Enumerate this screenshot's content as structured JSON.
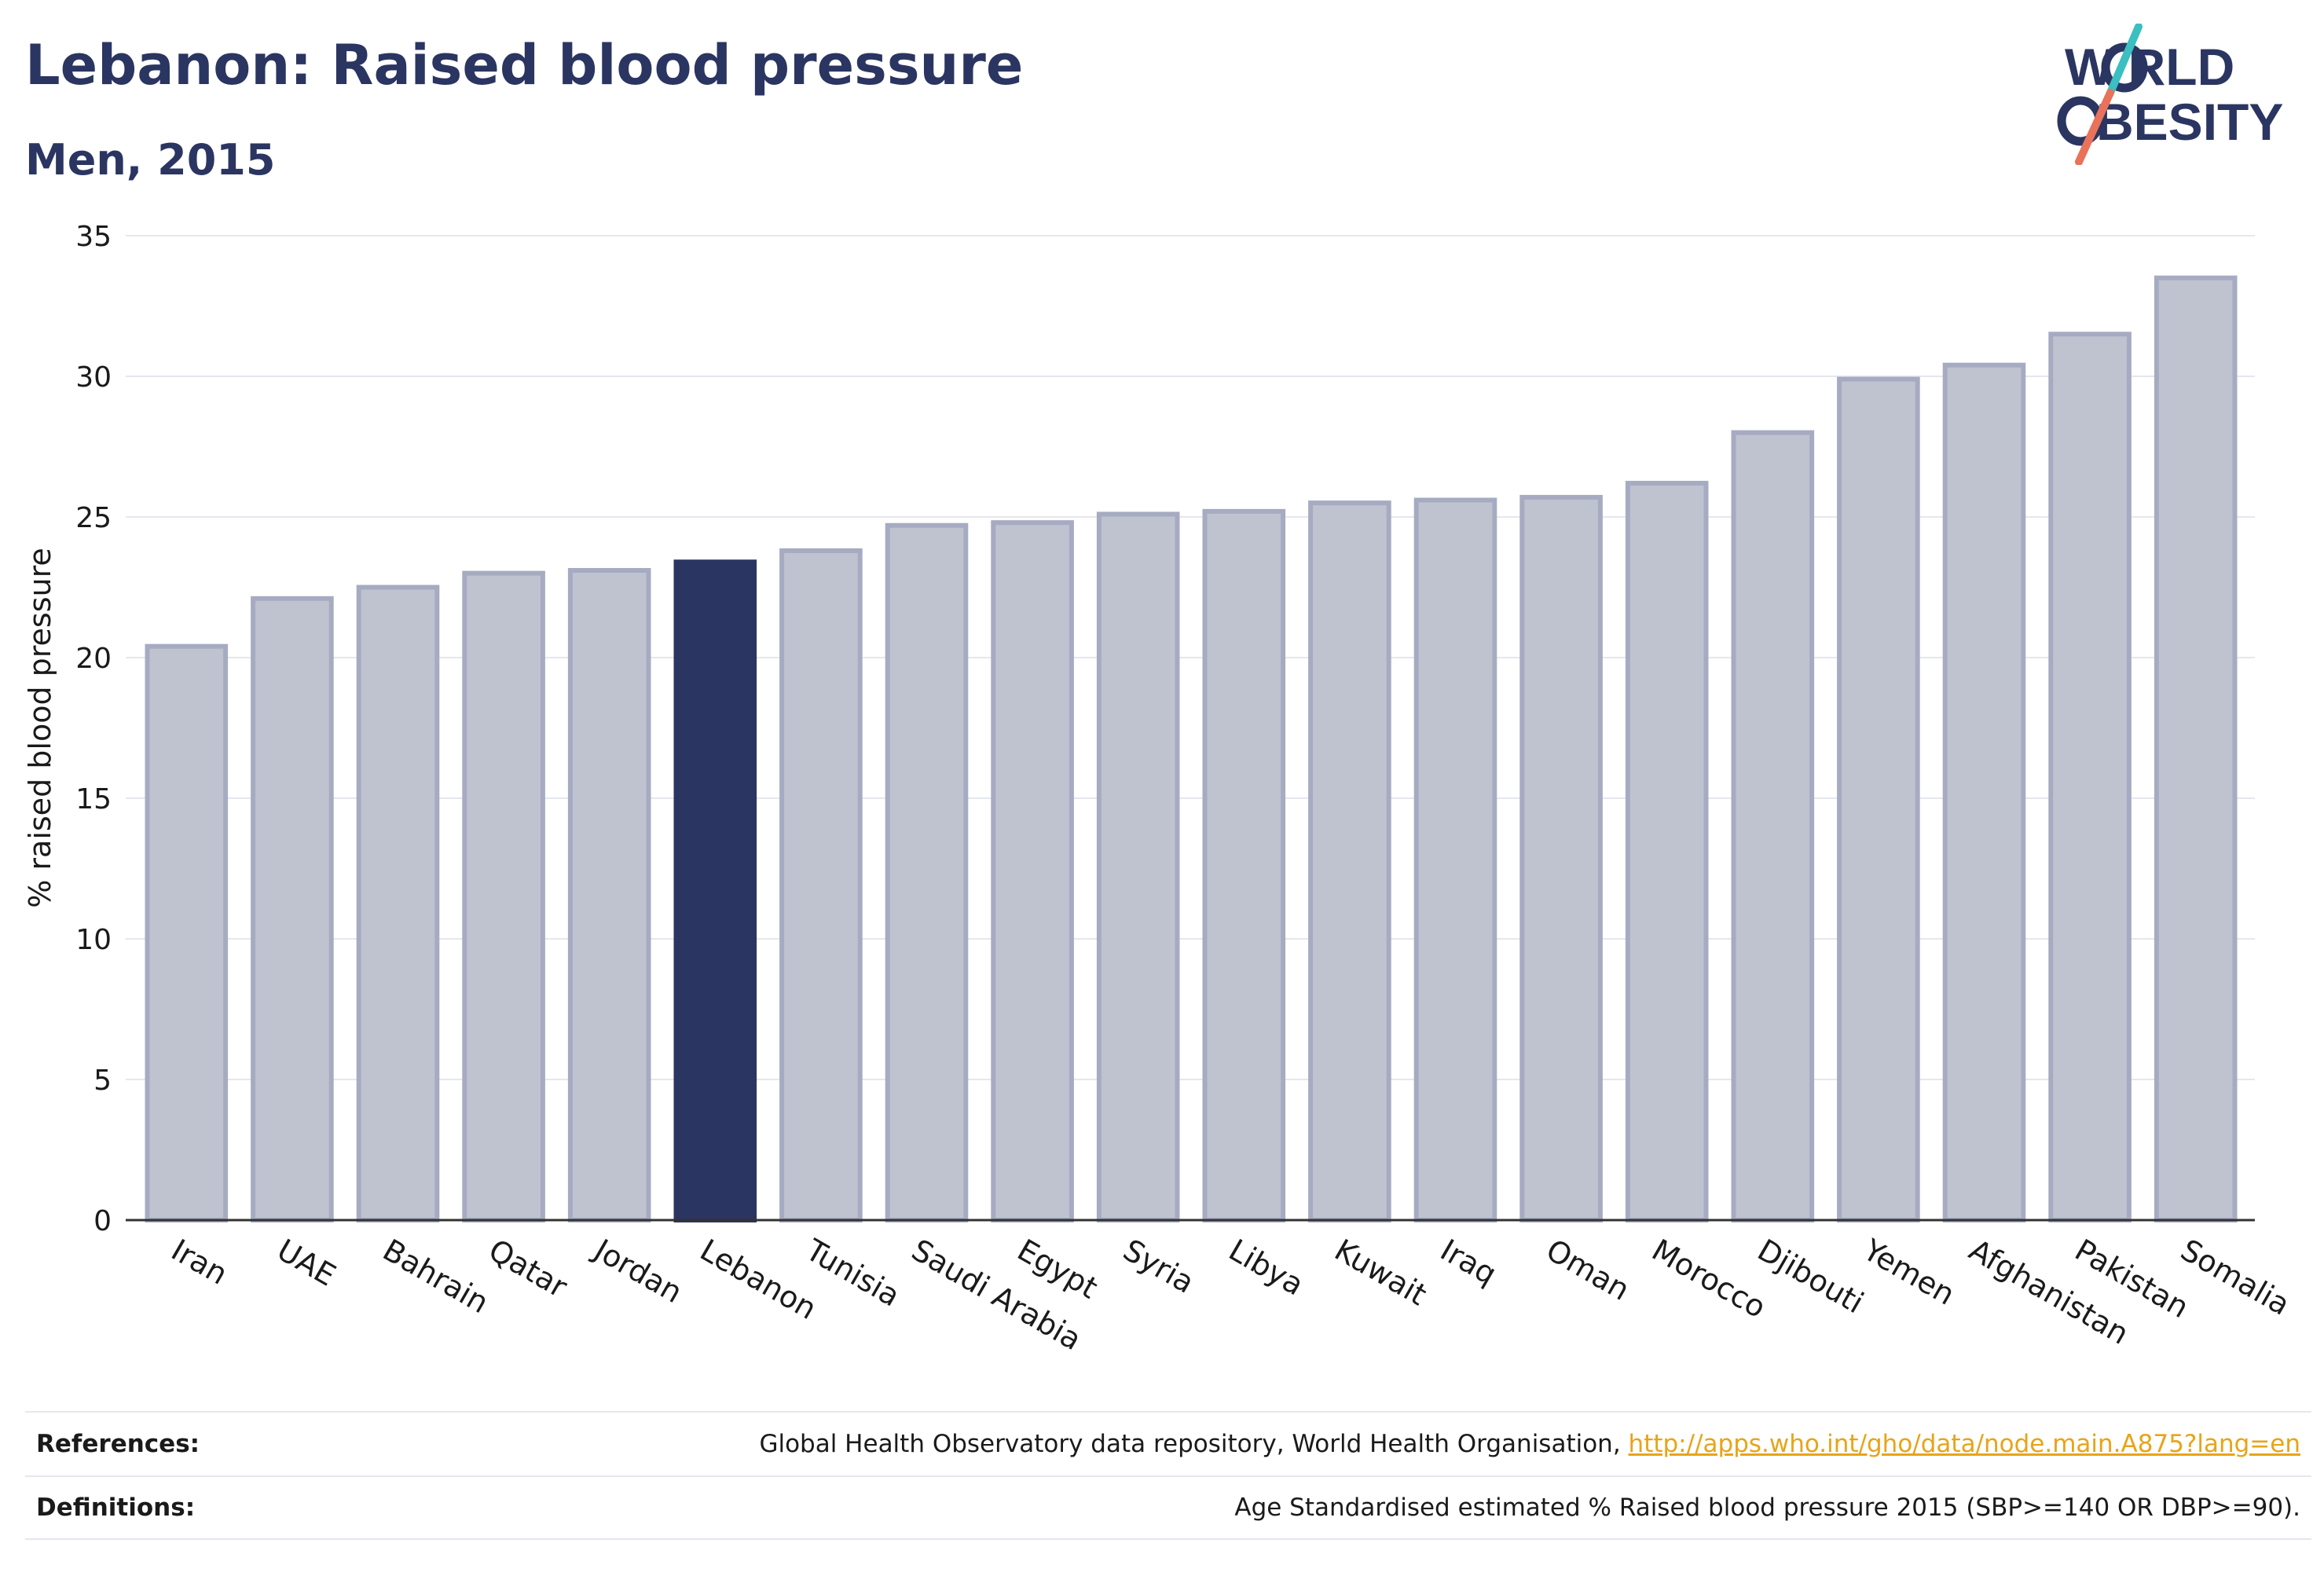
{
  "header": {
    "title": "Lebanon: Raised blood pressure",
    "subtitle": "Men, 2015"
  },
  "logo": {
    "line1": "W RLD",
    "line2": "BESITY",
    "colors": {
      "text": "#2b3561",
      "slash_top": "#3bbfc0",
      "slash_bottom": "#e8735a"
    }
  },
  "colors": {
    "bar_default": "#bfc3d0",
    "bar_default_stroke": "#a6abc2",
    "bar_highlight": "#2b3561",
    "grid": "#e6e7ee",
    "axis": "#333333"
  },
  "chart_data": {
    "type": "bar",
    "title": "Lebanon: Raised blood pressure",
    "subtitle": "Men, 2015",
    "ylabel": "% raised blood pressure",
    "xlabel": "",
    "ylim": [
      0,
      35
    ],
    "yticks": [
      0,
      5,
      10,
      15,
      20,
      25,
      30,
      35
    ],
    "grid": true,
    "highlight": "Lebanon",
    "categories": [
      "Iran",
      "UAE",
      "Bahrain",
      "Qatar",
      "Jordan",
      "Lebanon",
      "Tunisia",
      "Saudi Arabia",
      "Egypt",
      "Syria",
      "Libya",
      "Kuwait",
      "Iraq",
      "Oman",
      "Morocco",
      "Djibouti",
      "Yemen",
      "Afghanistan",
      "Pakistan",
      "Somalia"
    ],
    "values": [
      20.4,
      22.1,
      22.5,
      23.0,
      23.1,
      23.4,
      23.8,
      24.7,
      24.8,
      25.1,
      25.2,
      25.5,
      25.6,
      25.7,
      26.2,
      28.0,
      29.9,
      30.4,
      31.5,
      33.5
    ]
  },
  "footer": {
    "references_label": "References:",
    "references_text": "Global Health Observatory data repository, World Health Organisation,",
    "references_link": "http://apps.who.int/gho/data/node.main.A875?lang=en",
    "definitions_label": "Definitions:",
    "definitions_text": "Age Standardised estimated % Raised blood pressure 2015 (SBP>=140 OR DBP>=90)."
  }
}
